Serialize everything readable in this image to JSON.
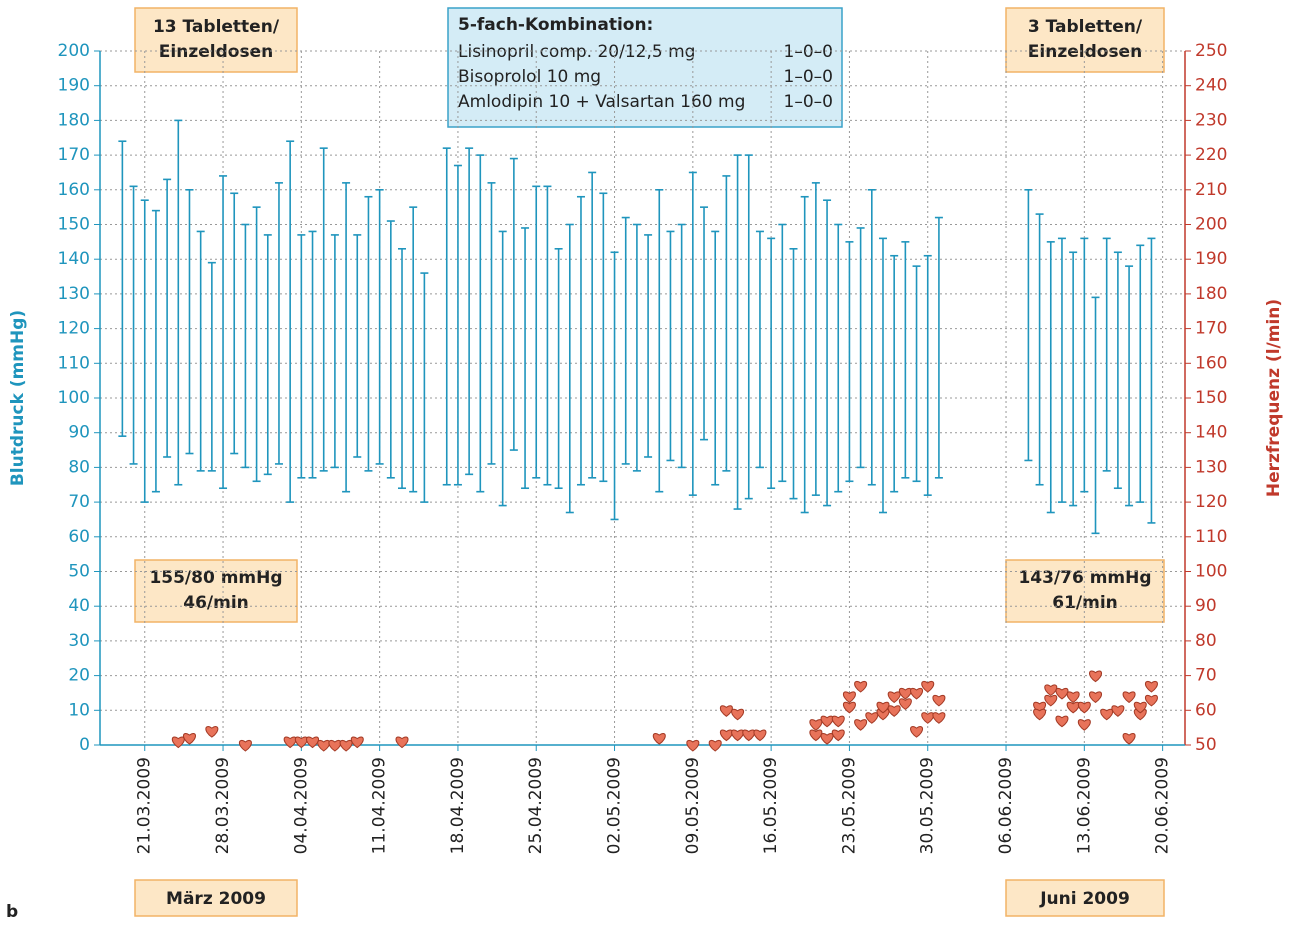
{
  "chart_data": {
    "type": "range-bar",
    "y_label": "Blutdruck (mmHg)",
    "y2_label": "Herzfrequenz (l/min)",
    "ylim": [
      0,
      200
    ],
    "yticks": [
      0,
      10,
      20,
      30,
      40,
      50,
      60,
      70,
      80,
      90,
      100,
      110,
      120,
      130,
      140,
      150,
      160,
      170,
      180,
      190,
      200
    ],
    "y2lim": [
      50,
      250
    ],
    "y2ticks": [
      50,
      60,
      70,
      80,
      90,
      100,
      110,
      120,
      130,
      140,
      150,
      160,
      170,
      180,
      190,
      200,
      210,
      220,
      230,
      240,
      250
    ],
    "xlim": [
      "17.03.2009",
      "22.06.2009"
    ],
    "xticks": [
      "21.03.2009",
      "28.03.2009",
      "04.04.2009",
      "11.04.2009",
      "18.04.2009",
      "25.04.2009",
      "02.05.2009",
      "09.05.2009",
      "16.05.2009",
      "23.05.2009",
      "30.05.2009",
      "06.06.2009",
      "13.06.2009",
      "20.06.2009"
    ],
    "grid": true,
    "series": [
      {
        "type": "range-bar",
        "color": "#1f95bd",
        "x": [
          "19.03.2009",
          "20.03.2009",
          "21.03.2009",
          "22.03.2009",
          "23.03.2009",
          "24.03.2009",
          "25.03.2009",
          "26.03.2009",
          "27.03.2009",
          "28.03.2009",
          "29.03.2009",
          "30.03.2009",
          "31.03.2009",
          "01.04.2009",
          "02.04.2009",
          "03.04.2009",
          "04.04.2009",
          "05.04.2009",
          "06.04.2009",
          "07.04.2009",
          "08.04.2009",
          "09.04.2009",
          "10.04.2009",
          "11.04.2009",
          "12.04.2009",
          "13.04.2009",
          "14.04.2009",
          "15.04.2009",
          "17.04.2009",
          "18.04.2009",
          "19.04.2009",
          "20.04.2009",
          "21.04.2009",
          "22.04.2009",
          "23.04.2009",
          "24.04.2009",
          "25.04.2009",
          "26.04.2009",
          "27.04.2009",
          "28.04.2009",
          "29.04.2009",
          "30.04.2009",
          "01.05.2009",
          "02.05.2009",
          "03.05.2009",
          "04.05.2009",
          "05.05.2009",
          "06.05.2009",
          "07.05.2009",
          "08.05.2009",
          "09.05.2009",
          "10.05.2009",
          "11.05.2009",
          "12.05.2009",
          "13.05.2009",
          "14.05.2009",
          "15.05.2009",
          "16.05.2009",
          "17.05.2009",
          "18.05.2009",
          "19.05.2009",
          "20.05.2009",
          "21.05.2009",
          "22.05.2009",
          "23.05.2009",
          "24.05.2009",
          "25.05.2009",
          "26.05.2009",
          "27.05.2009",
          "28.05.2009",
          "29.05.2009",
          "30.05.2009",
          "31.05.2009",
          "08.06.2009",
          "09.06.2009",
          "10.06.2009",
          "11.06.2009",
          "12.06.2009",
          "13.06.2009",
          "14.06.2009",
          "15.06.2009",
          "16.06.2009",
          "17.06.2009",
          "18.06.2009",
          "19.06.2009"
        ],
        "high": [
          174,
          161,
          157,
          154,
          163,
          180,
          160,
          148,
          139,
          164,
          159,
          150,
          155,
          147,
          162,
          174,
          147,
          148,
          172,
          147,
          162,
          147,
          158,
          160,
          151,
          143,
          155,
          136,
          172,
          167,
          172,
          170,
          162,
          148,
          169,
          149,
          161,
          161,
          143,
          150,
          158,
          165,
          159,
          142,
          152,
          150,
          147,
          160,
          148,
          150,
          165,
          155,
          148,
          164,
          170,
          170,
          148,
          146,
          150,
          143,
          158,
          162,
          157,
          150,
          145,
          149,
          160,
          146,
          141,
          145,
          138,
          141,
          152,
          160,
          153,
          145,
          146,
          142,
          146,
          129,
          146,
          142,
          138,
          144,
          146
        ],
        "low": [
          89,
          81,
          70,
          73,
          83,
          75,
          84,
          79,
          79,
          74,
          84,
          80,
          76,
          78,
          81,
          70,
          77,
          77,
          79,
          80,
          73,
          83,
          79,
          81,
          77,
          74,
          73,
          70,
          75,
          75,
          78,
          73,
          81,
          69,
          85,
          74,
          77,
          75,
          74,
          67,
          75,
          77,
          76,
          65,
          81,
          79,
          83,
          73,
          82,
          80,
          72,
          88,
          75,
          79,
          68,
          71,
          80,
          74,
          76,
          71,
          67,
          72,
          69,
          73,
          76,
          80,
          75,
          67,
          73,
          77,
          76,
          72,
          77,
          82,
          75,
          67,
          70,
          69,
          73,
          61,
          79,
          74,
          69,
          70,
          64
        ]
      },
      {
        "type": "scatter",
        "axis": "y2",
        "color": "#e8735a",
        "x": [
          "24.03.2009",
          "25.03.2009",
          "27.03.2009",
          "30.03.2009",
          "03.04.2009",
          "04.04.2009",
          "05.04.2009",
          "06.04.2009",
          "07.04.2009",
          "08.04.2009",
          "09.04.2009",
          "13.04.2009",
          "06.05.2009",
          "09.05.2009",
          "11.05.2009",
          "12.05.2009",
          "12.05.2009",
          "13.05.2009",
          "13.05.2009",
          "14.05.2009",
          "15.05.2009",
          "20.05.2009",
          "20.05.2009",
          "21.05.2009",
          "21.05.2009",
          "22.05.2009",
          "22.05.2009",
          "23.05.2009",
          "23.05.2009",
          "24.05.2009",
          "24.05.2009",
          "25.05.2009",
          "26.05.2009",
          "26.05.2009",
          "27.05.2009",
          "27.05.2009",
          "28.05.2009",
          "28.05.2009",
          "29.05.2009",
          "29.05.2009",
          "30.05.2009",
          "30.05.2009",
          "31.05.2009",
          "31.05.2009",
          "09.06.2009",
          "09.06.2009",
          "10.06.2009",
          "10.06.2009",
          "11.06.2009",
          "11.06.2009",
          "12.06.2009",
          "12.06.2009",
          "13.06.2009",
          "13.06.2009",
          "14.06.2009",
          "14.06.2009",
          "15.06.2009",
          "16.06.2009",
          "17.06.2009",
          "17.06.2009",
          "18.06.2009",
          "18.06.2009",
          "19.06.2009",
          "19.06.2009"
        ],
        "values": [
          51,
          52,
          54,
          50,
          51,
          51,
          51,
          50,
          50,
          50,
          51,
          51,
          52,
          50,
          50,
          60,
          53,
          59,
          53,
          53,
          53,
          53,
          56,
          52,
          57,
          53,
          57,
          61,
          64,
          56,
          67,
          58,
          59,
          61,
          64,
          60,
          62,
          65,
          54,
          65,
          58,
          67,
          58,
          63,
          61,
          59,
          63,
          66,
          65,
          57,
          61,
          64,
          56,
          61,
          70,
          64,
          59,
          60,
          52,
          64,
          59,
          61,
          63,
          67
        ]
      }
    ],
    "annotations": [
      [
        "13 Tabletten/",
        "Einzeldosen"
      ],
      [
        "3 Tabletten/",
        "Einzeldosen"
      ],
      [
        "155/80 mmHg",
        "46/min"
      ],
      [
        "143/76 mmHg",
        "61/min"
      ]
    ],
    "info_title": "5-fach-Kombination:",
    "info_rows": [
      [
        "Lisinopril comp. 20/12,5 mg",
        "1–0–0"
      ],
      [
        "Bisoprolol 10 mg",
        "1–0–0"
      ],
      [
        "Amlodipin 10 + Valsartan 160 mg",
        "1–0–0"
      ]
    ],
    "months": [
      "März 2009",
      "Juni 2009"
    ],
    "panel": "b"
  }
}
